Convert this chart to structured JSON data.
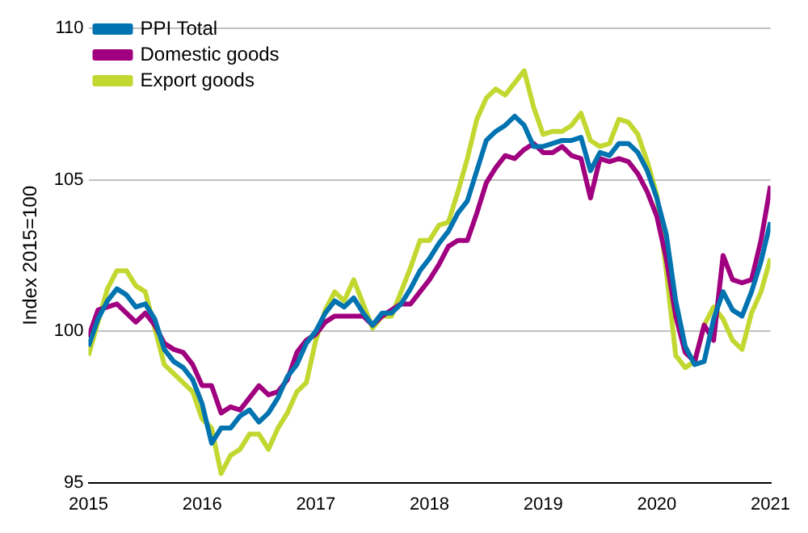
{
  "chart_data": {
    "type": "line",
    "ylabel": "Index 2015=100",
    "x": [
      "2015-01",
      "2015-02",
      "2015-03",
      "2015-04",
      "2015-05",
      "2015-06",
      "2015-07",
      "2015-08",
      "2015-09",
      "2015-10",
      "2015-11",
      "2015-12",
      "2016-01",
      "2016-02",
      "2016-03",
      "2016-04",
      "2016-05",
      "2016-06",
      "2016-07",
      "2016-08",
      "2016-09",
      "2016-10",
      "2016-11",
      "2016-12",
      "2017-01",
      "2017-02",
      "2017-03",
      "2017-04",
      "2017-05",
      "2017-06",
      "2017-07",
      "2017-08",
      "2017-09",
      "2017-10",
      "2017-11",
      "2017-12",
      "2018-01",
      "2018-02",
      "2018-03",
      "2018-04",
      "2018-05",
      "2018-06",
      "2018-07",
      "2018-08",
      "2018-09",
      "2018-10",
      "2018-11",
      "2018-12",
      "2019-01",
      "2019-02",
      "2019-03",
      "2019-04",
      "2019-05",
      "2019-06",
      "2019-07",
      "2019-08",
      "2019-09",
      "2019-10",
      "2019-11",
      "2019-12",
      "2020-01",
      "2020-02",
      "2020-03",
      "2020-04",
      "2020-05",
      "2020-06",
      "2020-07",
      "2020-08",
      "2020-09",
      "2020-10",
      "2020-11",
      "2020-12",
      "2021-01"
    ],
    "series": [
      {
        "name": "PPI Total",
        "color": "#0073b0",
        "values": [
          99.5,
          100.4,
          101.0,
          101.4,
          101.2,
          100.8,
          100.9,
          100.4,
          99.4,
          99.0,
          98.8,
          98.4,
          97.6,
          96.3,
          96.8,
          96.8,
          97.2,
          97.4,
          97.0,
          97.3,
          97.8,
          98.5,
          98.9,
          99.6,
          100.0,
          100.6,
          101.0,
          100.8,
          101.1,
          100.6,
          100.2,
          100.6,
          100.6,
          100.9,
          101.4,
          102.0,
          102.4,
          102.9,
          103.3,
          103.9,
          104.3,
          105.3,
          106.3,
          106.6,
          106.8,
          107.1,
          106.8,
          106.1,
          106.1,
          106.2,
          106.3,
          106.3,
          106.4,
          105.3,
          105.9,
          105.8,
          106.2,
          106.2,
          105.9,
          105.3,
          104.4,
          103.2,
          101.0,
          99.5,
          98.9,
          99.0,
          100.4,
          101.3,
          100.7,
          100.5,
          101.3,
          102.3,
          103.6
        ]
      },
      {
        "name": "Domestic goods",
        "color": "#a0007f",
        "values": [
          99.8,
          100.7,
          100.8,
          100.9,
          100.6,
          100.3,
          100.6,
          100.2,
          99.6,
          99.4,
          99.3,
          98.9,
          98.2,
          98.2,
          97.3,
          97.5,
          97.4,
          97.8,
          98.2,
          97.9,
          98.0,
          98.4,
          99.3,
          99.7,
          99.9,
          100.3,
          100.5,
          100.5,
          100.5,
          100.5,
          100.2,
          100.5,
          100.7,
          100.9,
          100.9,
          101.3,
          101.7,
          102.2,
          102.8,
          103.0,
          103.0,
          103.9,
          104.9,
          105.4,
          105.8,
          105.7,
          106.0,
          106.2,
          105.9,
          105.9,
          106.1,
          105.8,
          105.7,
          104.4,
          105.7,
          105.6,
          105.7,
          105.6,
          105.2,
          104.6,
          103.8,
          102.4,
          100.5,
          99.3,
          99.0,
          100.2,
          99.7,
          102.5,
          101.7,
          101.6,
          101.7,
          103.0,
          104.8
        ]
      },
      {
        "name": "Export goods",
        "color": "#c2d831",
        "values": [
          99.2,
          100.3,
          101.4,
          102.0,
          102.0,
          101.5,
          101.3,
          100.1,
          98.9,
          98.6,
          98.3,
          98.0,
          97.1,
          96.8,
          95.3,
          95.9,
          96.1,
          96.6,
          96.6,
          96.1,
          96.8,
          97.3,
          98.0,
          98.3,
          99.7,
          100.7,
          101.3,
          101.0,
          101.7,
          100.9,
          100.1,
          100.5,
          100.5,
          101.3,
          102.1,
          103.0,
          103.0,
          103.5,
          103.6,
          104.6,
          105.7,
          107.0,
          107.7,
          108.0,
          107.8,
          108.2,
          108.6,
          107.4,
          106.5,
          106.6,
          106.6,
          106.8,
          107.2,
          106.3,
          106.1,
          106.2,
          107.0,
          106.9,
          106.5,
          105.6,
          104.5,
          102.0,
          99.2,
          98.8,
          99.0,
          100.2,
          100.8,
          100.4,
          99.7,
          99.4,
          100.6,
          101.3,
          102.4
        ]
      }
    ],
    "xlim": [
      "2015-01",
      "2021-01"
    ],
    "xticks": [
      "2015",
      "2016",
      "2017",
      "2018",
      "2019",
      "2020",
      "2021"
    ],
    "ylim": [
      95,
      110
    ],
    "yticks": [
      95,
      100,
      105,
      110
    ],
    "grid": "y",
    "legend": "top left",
    "marker": "none",
    "line_style": "solid"
  }
}
